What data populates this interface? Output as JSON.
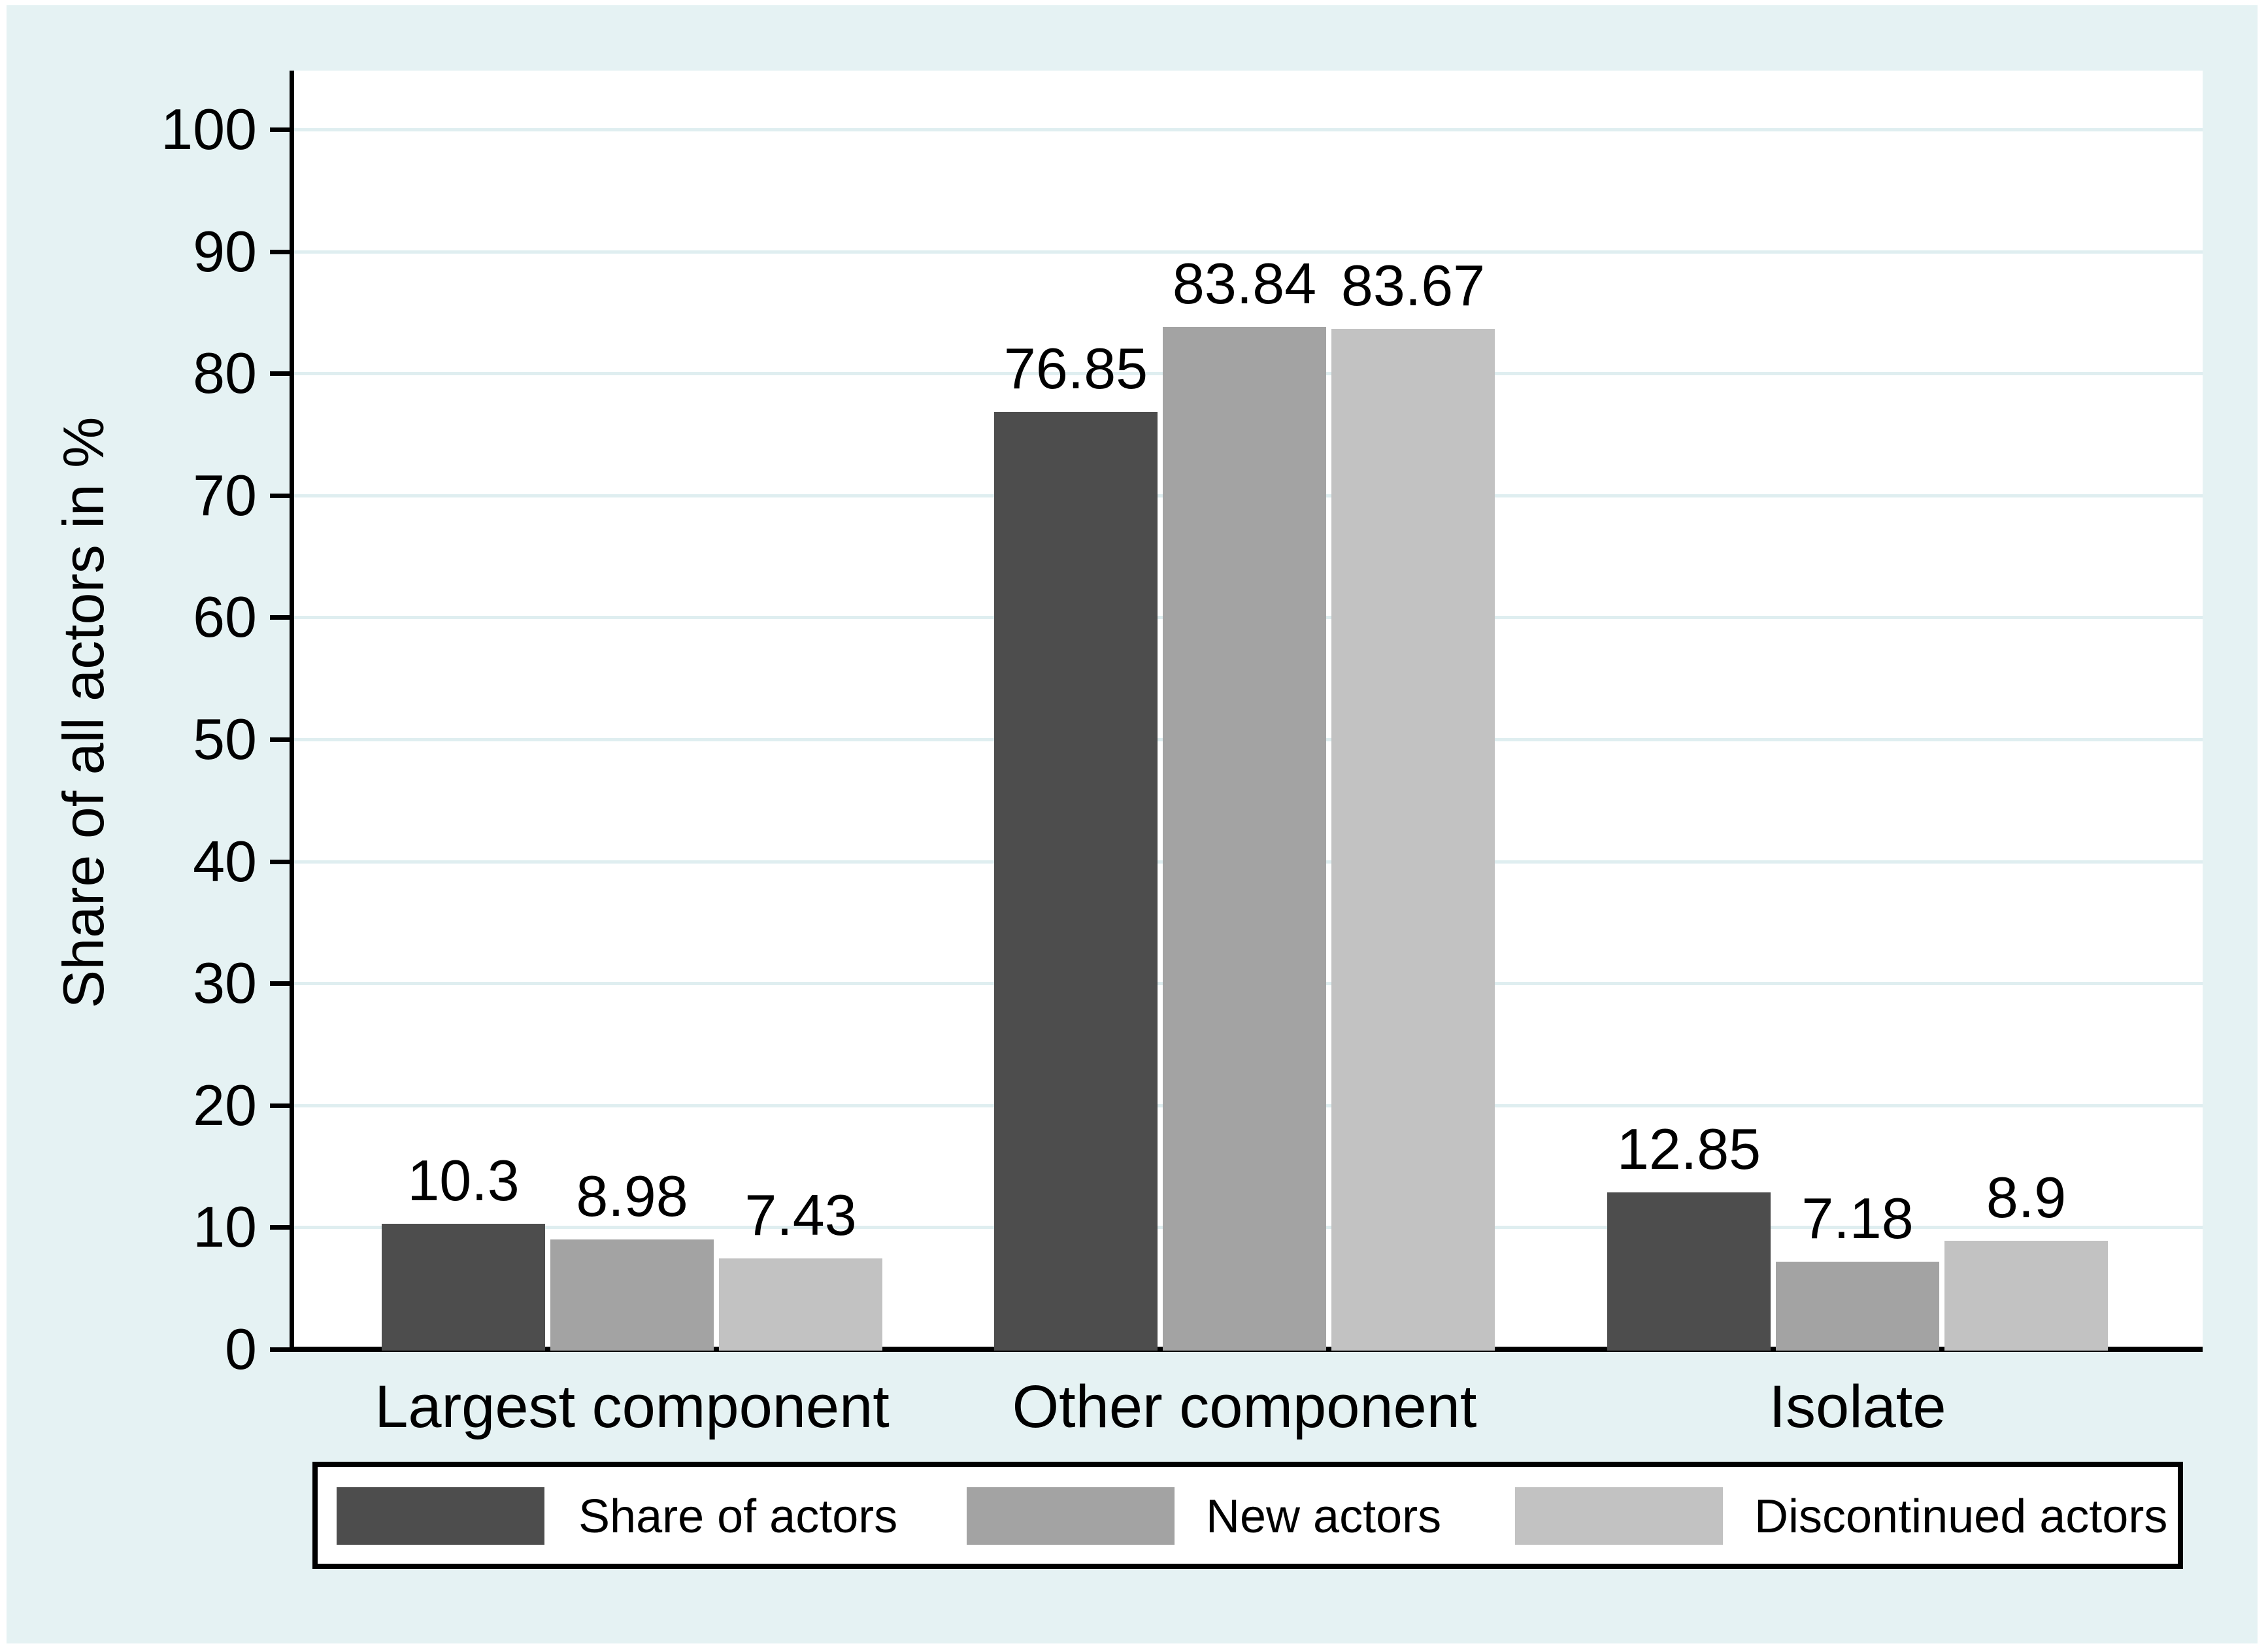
{
  "figure": {
    "background_color": "#e5f2f3",
    "plot_background_color": "#ffffff",
    "grid_color": "#dfeef0",
    "axis_color": "#000000"
  },
  "chart_data": {
    "type": "bar",
    "title": "",
    "categories": [
      "Largest component",
      "Other component",
      "Isolate"
    ],
    "series": [
      {
        "name": "Share of actors",
        "color": "#4d4d4d",
        "values": [
          10.3,
          76.85,
          12.85
        ],
        "labels": [
          "10.3",
          "76.85",
          "12.85"
        ]
      },
      {
        "name": "New actors",
        "color": "#a3a3a3",
        "values": [
          8.98,
          83.84,
          7.18
        ],
        "labels": [
          "8.98",
          "83.84",
          "7.18"
        ]
      },
      {
        "name": "Discontinued actors",
        "color": "#c2c2c2",
        "values": [
          7.43,
          83.67,
          8.9
        ],
        "labels": [
          "7.43",
          "83.67",
          "8.9"
        ]
      }
    ],
    "ylabel": "Share of all actors in %",
    "xlabel": "",
    "ylim": [
      0,
      100
    ],
    "yticks": [
      0,
      10,
      20,
      30,
      40,
      50,
      60,
      70,
      80,
      90,
      100
    ],
    "grid": true,
    "value_labels": true,
    "legend_position": "bottom"
  }
}
